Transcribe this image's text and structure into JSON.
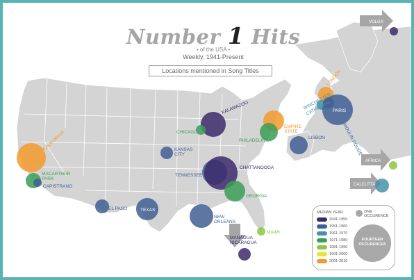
{
  "title": {
    "word1": "Number",
    "num": "1",
    "word2": "Hits"
  },
  "subtitle_line1": "• of the USA •",
  "subtitle_line2": "Weekly, 1941-Present",
  "location_box": "Locations mentioned in Song Titles",
  "colors": {
    "border": "#5ab3b3",
    "land": "#d4d4d4",
    "outline": "#ffffff",
    "arrow": "#a6a6a6",
    "era_1941_1950": "#3c2a6b",
    "era_1951_1960": "#3f5f94",
    "era_1961_1970": "#4593a8",
    "era_1971_1980": "#3b9e57",
    "era_1981_1990": "#8dc63f",
    "era_1991_2000": "#e8e33c",
    "era_2001_2010": "#f29a2e"
  },
  "locations": [
    {
      "name": "VOLGA",
      "era": "era_1941_1950"
    },
    {
      "name": "LONDON",
      "era": "era_2001_2010"
    },
    {
      "name": "WINCHESTER CATHEDRAL",
      "era": "era_1961_1970"
    },
    {
      "name": "PARIS",
      "era": "era_1951_1960"
    },
    {
      "name": "MOULIN ROUGE",
      "era": "era_1951_1960"
    },
    {
      "name": "LISBON",
      "era": "era_1951_1960"
    },
    {
      "name": "AFRICA",
      "era": "era_1981_1990"
    },
    {
      "name": "CALCUTTA",
      "era": "era_1961_1970"
    },
    {
      "name": "KALAMAZOO",
      "era": "era_1941_1950"
    },
    {
      "name": "CHICAGO",
      "era": "era_1971_1980"
    },
    {
      "name": "EMPIRE STATE",
      "era": "era_2001_2010"
    },
    {
      "name": "PHILADELPHIA",
      "era": "era_1971_1980"
    },
    {
      "name": "KANSAS CITY",
      "era": "era_1951_1960"
    },
    {
      "name": "TENNESSEE",
      "era": "era_1951_1960"
    },
    {
      "name": "CHATTANOOGA",
      "era": "era_1941_1950"
    },
    {
      "name": "GEORGIA",
      "era": "era_1971_1980"
    },
    {
      "name": "CALIFORNIA",
      "era": "era_2001_2010"
    },
    {
      "name": "MACARTHUR PARK",
      "era": "era_1971_1980"
    },
    {
      "name": "CAPISTRANO",
      "era": "era_1951_1960"
    },
    {
      "name": "EL PASO",
      "era": "era_1951_1960"
    },
    {
      "name": "TEXAS",
      "era": "era_1951_1960"
    },
    {
      "name": "NEW ORLEANS",
      "era": "era_1951_1960"
    },
    {
      "name": "MIAMI",
      "era": "era_1981_1990"
    },
    {
      "name": "MANAGUA NICARAGUA",
      "era": "era_1941_1950"
    }
  ],
  "legend": {
    "heading": "MEDIAN YEAR",
    "items": [
      {
        "label": "1941-1950",
        "era": "era_1941_1950"
      },
      {
        "label": "1951-1960",
        "era": "era_1951_1960"
      },
      {
        "label": "1961-1970",
        "era": "era_1961_1970"
      },
      {
        "label": "1971-1980",
        "era": "era_1971_1980"
      },
      {
        "label": "1981-1990",
        "era": "era_1981_1990"
      },
      {
        "label": "1991-2000",
        "era": "era_1991_2000"
      },
      {
        "label": "2001-2010",
        "era": "era_2001_2010"
      }
    ],
    "one_label": "ONE OCCURENCE",
    "big_label": "FOURTEEN OCCURENCES"
  }
}
